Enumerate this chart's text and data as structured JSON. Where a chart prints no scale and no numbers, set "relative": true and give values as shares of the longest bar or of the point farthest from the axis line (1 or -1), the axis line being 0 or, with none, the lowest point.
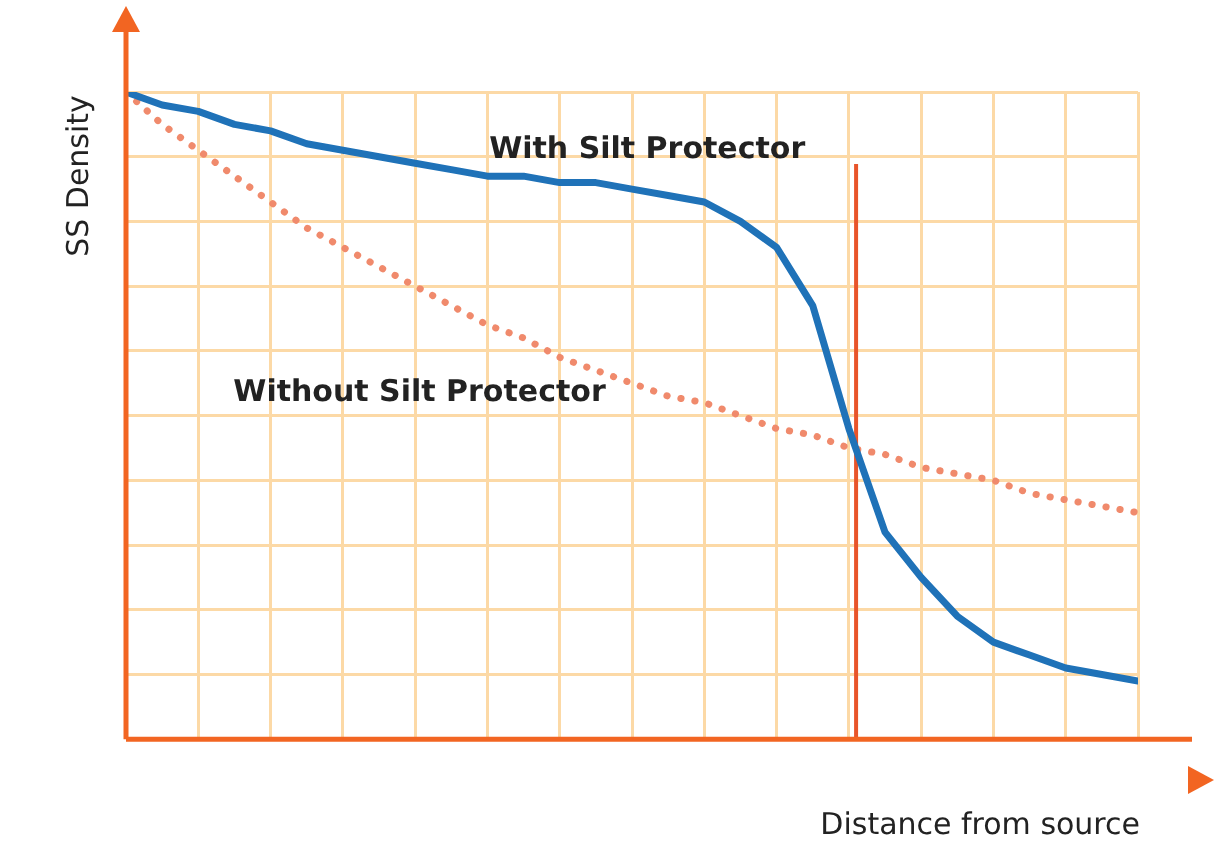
{
  "chart_data": {
    "type": "line",
    "relative": true,
    "xlabel": "Distance from source",
    "ylabel": "SS Density",
    "grid": true,
    "legend": false,
    "marker": "none",
    "categories": [
      null,
      null,
      null,
      null,
      null,
      null,
      null,
      null,
      null,
      null,
      null,
      null,
      null,
      null,
      null,
      null,
      null,
      null,
      null,
      null,
      null,
      null,
      null,
      null,
      null,
      null,
      null,
      null,
      null
    ],
    "series": [
      {
        "name": "With Silt Protector",
        "color": "#1f72b8",
        "line_style": "solid",
        "values": [
          1,
          0.98,
          0.97,
          0.95,
          0.94,
          0.92,
          0.91,
          0.9,
          0.89,
          0.88,
          0.87,
          0.87,
          0.86,
          0.86,
          0.85,
          0.84,
          0.83,
          0.8,
          0.76,
          0.67,
          0.48,
          0.32,
          0.25,
          0.19,
          0.15,
          0.13,
          0.11,
          0.1,
          0.09
        ]
      },
      {
        "name": "Without Silt Protector",
        "color": "#f08a6c",
        "line_style": "dotted",
        "values": [
          1,
          0.95,
          0.91,
          0.87,
          0.83,
          0.79,
          0.76,
          0.73,
          0.7,
          0.67,
          0.64,
          0.62,
          0.59,
          0.57,
          0.55,
          0.53,
          0.52,
          0.5,
          0.48,
          0.47,
          0.45,
          0.44,
          0.42,
          0.41,
          0.4,
          0.38,
          0.37,
          0.36,
          0.35
        ]
      }
    ],
    "ref_lines": [
      {
        "axis": "x",
        "color": "#e8542a"
      }
    ]
  }
}
